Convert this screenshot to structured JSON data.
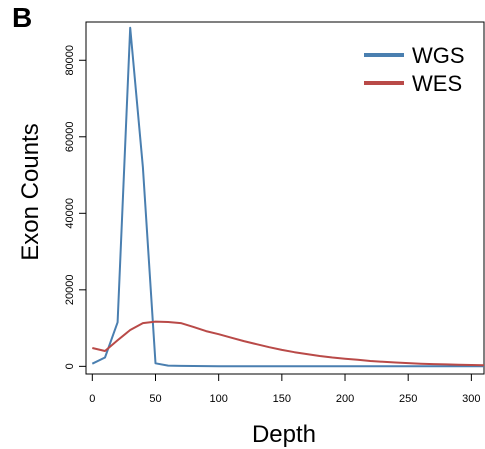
{
  "chart_data": {
    "type": "line",
    "panel_label": "B",
    "title": "",
    "xlabel": "Depth",
    "ylabel": "Exon Counts",
    "xlim": [
      -5,
      310
    ],
    "ylim": [
      -2000,
      90000
    ],
    "x_ticks": [
      0,
      50,
      100,
      150,
      200,
      250,
      300
    ],
    "y_ticks": [
      0,
      20000,
      40000,
      60000,
      80000
    ],
    "grid": false,
    "legend_position": "top-right",
    "series": [
      {
        "name": "WGS",
        "color": "#4a7fb0",
        "x": [
          0,
          10,
          20,
          30,
          40,
          50,
          60,
          70,
          80,
          90,
          100,
          120,
          150,
          200,
          250,
          300,
          310
        ],
        "y": [
          700,
          2300,
          11500,
          88500,
          52000,
          800,
          200,
          120,
          80,
          60,
          50,
          40,
          30,
          20,
          15,
          10,
          10
        ]
      },
      {
        "name": "WES",
        "color": "#b94a48",
        "x": [
          0,
          10,
          20,
          30,
          40,
          50,
          60,
          70,
          80,
          90,
          100,
          110,
          120,
          130,
          140,
          150,
          160,
          170,
          180,
          190,
          200,
          210,
          220,
          230,
          240,
          250,
          260,
          270,
          280,
          290,
          300,
          310
        ],
        "y": [
          4800,
          4000,
          6800,
          9500,
          11300,
          11700,
          11600,
          11300,
          10300,
          9200,
          8400,
          7500,
          6600,
          5800,
          5000,
          4300,
          3700,
          3200,
          2700,
          2300,
          2000,
          1700,
          1400,
          1200,
          1000,
          850,
          700,
          600,
          500,
          420,
          350,
          300
        ]
      }
    ]
  }
}
